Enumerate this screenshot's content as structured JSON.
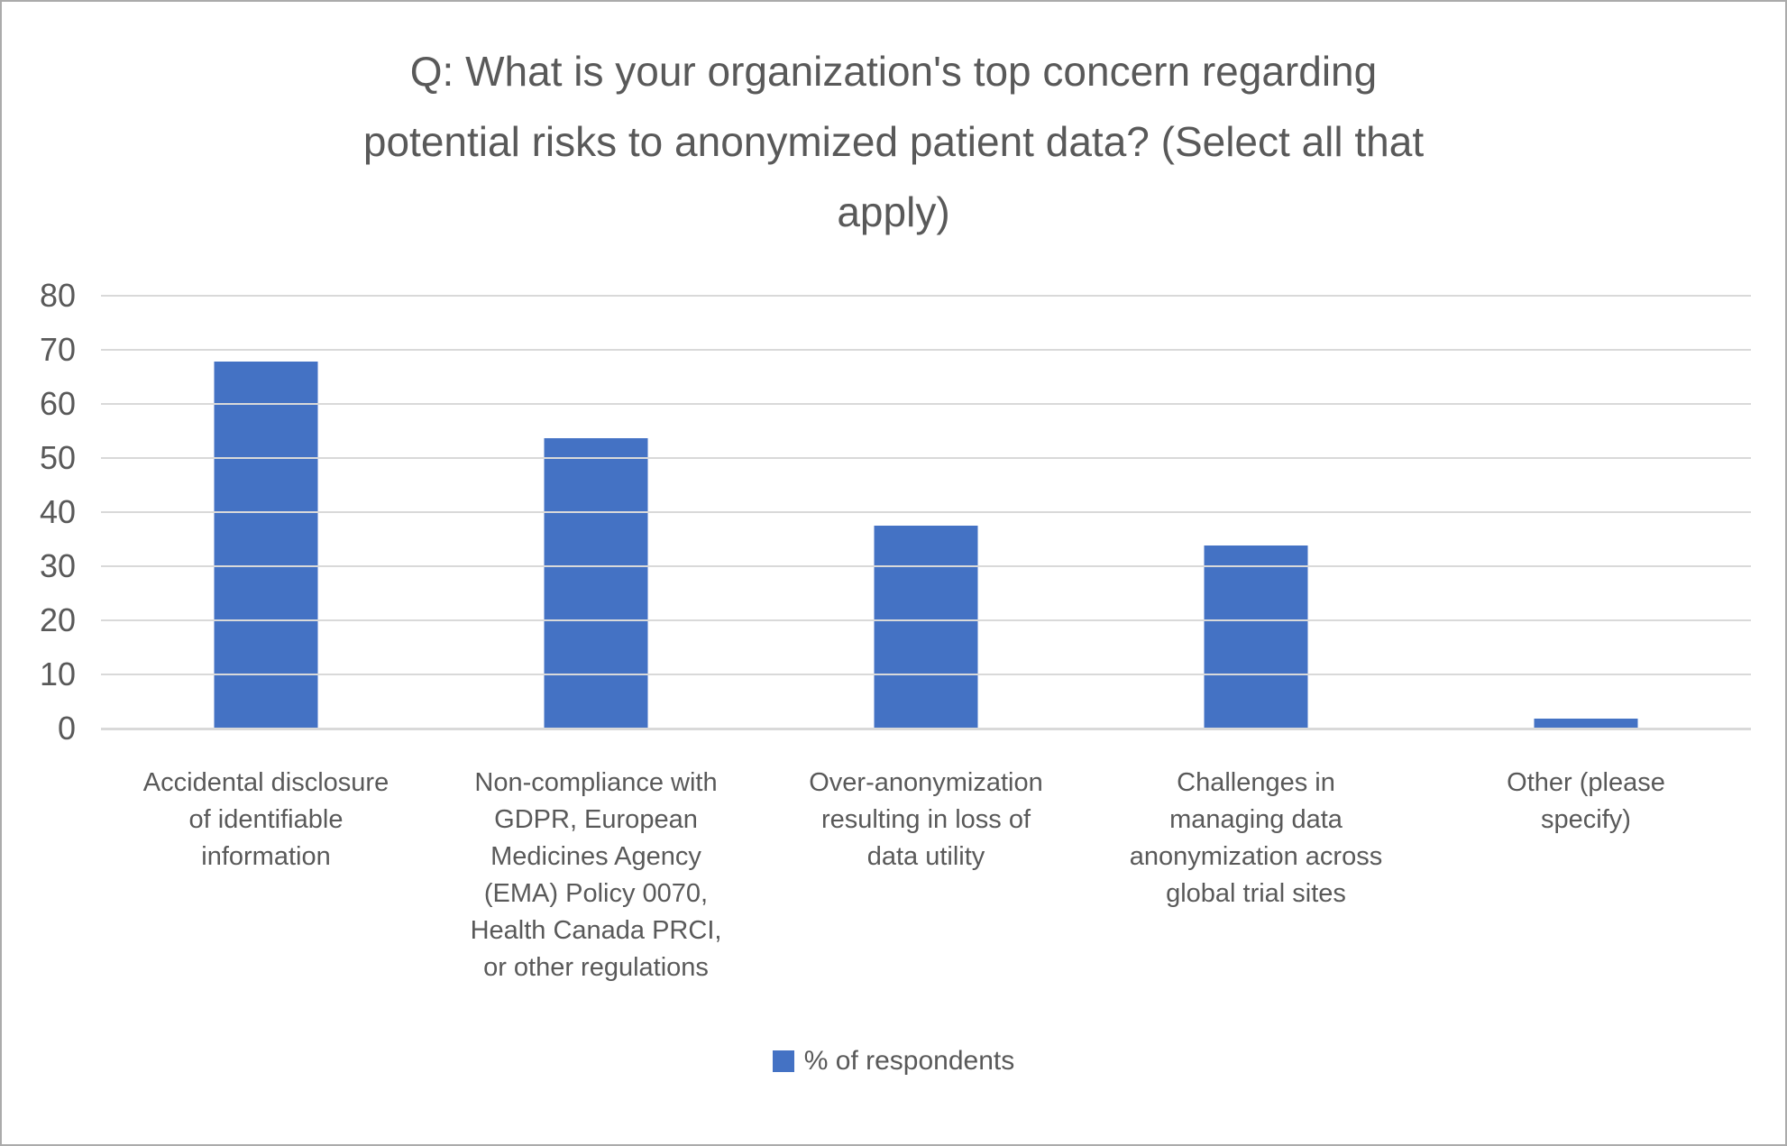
{
  "window": {
    "background": "#FFFFFF",
    "border_color": "#ABABAB"
  },
  "chart_data": {
    "type": "bar",
    "title": "Q: What is your organization's top concern regarding potential risks to anonymized patient data? (Select all that apply)",
    "title_lines": [
      "Q: What is your organization's top concern regarding",
      "potential risks to anonymized patient data? (Select all that",
      "apply)"
    ],
    "categories": [
      "Accidental disclosure of identifiable information",
      "Non-compliance with GDPR, European Medicines Agency (EMA) Policy 0070, Health Canada PRCI, or other regulations",
      "Over-anonymization resulting in loss of data utility",
      "Challenges in managing data anonymization across global trial sites",
      "Other (please specify)"
    ],
    "category_lines": [
      [
        "Accidental disclosure",
        "of identifiable",
        "information"
      ],
      [
        "Non-compliance with",
        "GDPR, European",
        "Medicines Agency",
        "(EMA) Policy 0070,",
        "Health Canada PRCI,",
        "or other regulations"
      ],
      [
        "Over-anonymization",
        "resulting in loss of",
        "data utility"
      ],
      [
        "Challenges in",
        "managing data",
        "anonymization across",
        "global trial sites"
      ],
      [
        "Other (please",
        "specify)"
      ]
    ],
    "values": [
      67.9,
      53.6,
      37.5,
      33.9,
      1.8
    ],
    "series_name": "% of respondents",
    "xlabel": "",
    "ylabel": "",
    "ylim": [
      0,
      80
    ],
    "yticks": [
      0,
      10,
      20,
      30,
      40,
      50,
      60,
      70,
      80
    ],
    "grid": true,
    "legend_position": "bottom",
    "bar_color": "#4472C4",
    "text_color": "#595959",
    "gridline_color": "#D9D9D9"
  }
}
